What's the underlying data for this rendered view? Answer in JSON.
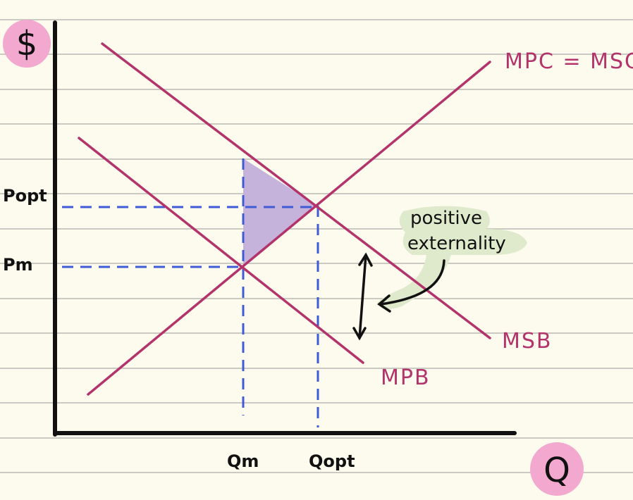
{
  "axes": {
    "y_label": "$",
    "x_label": "Q"
  },
  "curves": {
    "supply": "MPC = MSC",
    "social_benefit": "MSB",
    "private_benefit": "MPB"
  },
  "prices": {
    "optimal": "Popt",
    "market": "Pm"
  },
  "quantities": {
    "market": "Qm",
    "optimal": "Qopt"
  },
  "annotation": {
    "lines": [
      "positive",
      "externality"
    ]
  }
}
